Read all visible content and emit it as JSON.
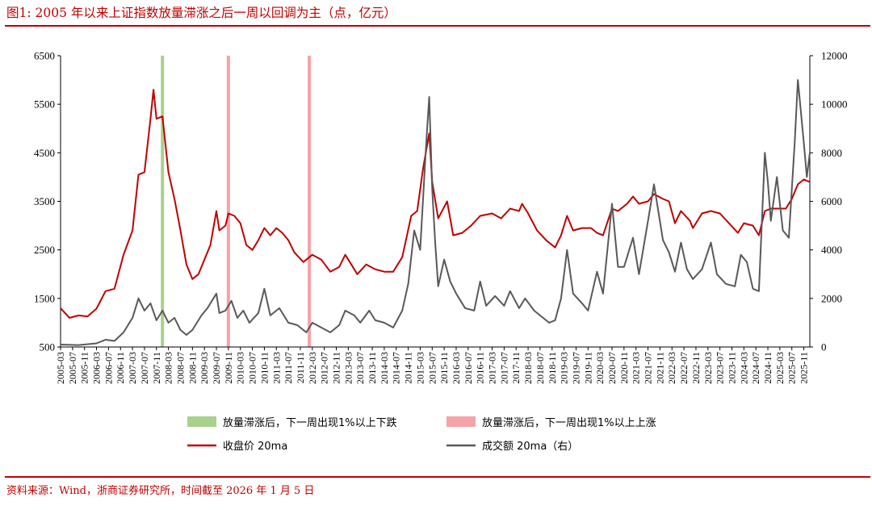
{
  "title": "图1:  2005 年以来上证指数放量滞涨之后一周以回调为主（点，亿元）",
  "source": "资料来源：Wind，浙商证券研究所，时间截至 2026 年 1 月 5 日",
  "colors": {
    "accent": "#c00000",
    "close": "#c00000",
    "volume": "#595959",
    "band_down": "#a9d18e",
    "band_up": "#f4a3a8"
  },
  "chart_data": {
    "type": "line",
    "x_start": "2005-03",
    "x_end": "2026-01",
    "x_ticks": [
      "2005-03",
      "2005-07",
      "2005-11",
      "2006-03",
      "2006-07",
      "2006-11",
      "2007-03",
      "2007-07",
      "2007-11",
      "2008-03",
      "2008-07",
      "2008-11",
      "2009-03",
      "2009-07",
      "2009-11",
      "2010-03",
      "2010-07",
      "2010-11",
      "2011-03",
      "2011-07",
      "2011-11",
      "2012-03",
      "2012-07",
      "2012-11",
      "2013-03",
      "2013-07",
      "2013-11",
      "2014-03",
      "2014-07",
      "2014-11",
      "2015-03",
      "2015-07",
      "2015-11",
      "2016-03",
      "2016-07",
      "2016-11",
      "2017-03",
      "2017-07",
      "2017-11",
      "2018-03",
      "2018-07",
      "2018-11",
      "2019-03",
      "2019-07",
      "2019-11",
      "2020-03",
      "2020-07",
      "2020-11",
      "2021-03",
      "2021-07",
      "2021-11",
      "2022-03",
      "2022-07",
      "2022-11",
      "2023-03",
      "2023-07",
      "2023-11",
      "2024-03",
      "2024-07",
      "2024-11",
      "2025-03",
      "2025-07",
      "2025-11"
    ],
    "y_left": {
      "ticks": [
        500,
        1500,
        2500,
        3500,
        4500,
        5500,
        6500
      ],
      "range": [
        500,
        6500
      ]
    },
    "y_right": {
      "ticks": [
        0,
        2000,
        4000,
        6000,
        8000,
        10000,
        12000
      ],
      "range": [
        0,
        12000
      ]
    },
    "bands": [
      {
        "date": "2008-01",
        "series": "放量滞涨后，下一周出现1%以上下跌"
      },
      {
        "date": "2009-11",
        "series": "放量滞涨后，下一周出现1%以上上涨"
      },
      {
        "date": "2012-02",
        "series": "放量滞涨后，下一周出现1%以上上涨"
      }
    ],
    "legend": {
      "down": "放量滞涨后，下一周出现1%以上下跌",
      "up": "放量滞涨后，下一周出现1%以上上涨",
      "close": "收盘价 20ma",
      "volume": "成交额 20ma（右）"
    },
    "series": [
      {
        "name": "收盘价 20ma",
        "axis": "left",
        "points": [
          [
            "2005-03",
            1300
          ],
          [
            "2005-06",
            1100
          ],
          [
            "2005-09",
            1150
          ],
          [
            "2005-12",
            1130
          ],
          [
            "2006-03",
            1290
          ],
          [
            "2006-06",
            1650
          ],
          [
            "2006-09",
            1700
          ],
          [
            "2006-12",
            2400
          ],
          [
            "2007-03",
            2900
          ],
          [
            "2007-05",
            4050
          ],
          [
            "2007-07",
            4100
          ],
          [
            "2007-09",
            5200
          ],
          [
            "2007-10",
            5800
          ],
          [
            "2007-11",
            5200
          ],
          [
            "2008-01",
            5250
          ],
          [
            "2008-03",
            4100
          ],
          [
            "2008-05",
            3550
          ],
          [
            "2008-07",
            2900
          ],
          [
            "2008-09",
            2200
          ],
          [
            "2008-11",
            1900
          ],
          [
            "2009-01",
            2000
          ],
          [
            "2009-03",
            2300
          ],
          [
            "2009-05",
            2600
          ],
          [
            "2009-07",
            3300
          ],
          [
            "2009-08",
            2900
          ],
          [
            "2009-10",
            3000
          ],
          [
            "2009-11",
            3250
          ],
          [
            "2010-01",
            3200
          ],
          [
            "2010-03",
            3050
          ],
          [
            "2010-05",
            2600
          ],
          [
            "2010-07",
            2500
          ],
          [
            "2010-09",
            2700
          ],
          [
            "2010-11",
            2950
          ],
          [
            "2011-01",
            2800
          ],
          [
            "2011-03",
            2950
          ],
          [
            "2011-05",
            2850
          ],
          [
            "2011-07",
            2700
          ],
          [
            "2011-09",
            2450
          ],
          [
            "2011-12",
            2250
          ],
          [
            "2012-03",
            2400
          ],
          [
            "2012-06",
            2300
          ],
          [
            "2012-09",
            2050
          ],
          [
            "2012-12",
            2150
          ],
          [
            "2013-02",
            2400
          ],
          [
            "2013-04",
            2200
          ],
          [
            "2013-06",
            2000
          ],
          [
            "2013-09",
            2200
          ],
          [
            "2013-12",
            2100
          ],
          [
            "2014-03",
            2050
          ],
          [
            "2014-06",
            2050
          ],
          [
            "2014-09",
            2350
          ],
          [
            "2014-12",
            3200
          ],
          [
            "2015-02",
            3300
          ],
          [
            "2015-04",
            4200
          ],
          [
            "2015-06",
            4900
          ],
          [
            "2015-07",
            3900
          ],
          [
            "2015-09",
            3150
          ],
          [
            "2015-12",
            3500
          ],
          [
            "2016-02",
            2800
          ],
          [
            "2016-05",
            2850
          ],
          [
            "2016-08",
            3000
          ],
          [
            "2016-11",
            3200
          ],
          [
            "2017-03",
            3250
          ],
          [
            "2017-06",
            3150
          ],
          [
            "2017-09",
            3350
          ],
          [
            "2017-12",
            3300
          ],
          [
            "2018-01",
            3450
          ],
          [
            "2018-03",
            3250
          ],
          [
            "2018-06",
            2900
          ],
          [
            "2018-09",
            2700
          ],
          [
            "2018-12",
            2550
          ],
          [
            "2019-02",
            2800
          ],
          [
            "2019-04",
            3200
          ],
          [
            "2019-06",
            2900
          ],
          [
            "2019-09",
            2950
          ],
          [
            "2019-12",
            2950
          ],
          [
            "2020-02",
            2850
          ],
          [
            "2020-04",
            2800
          ],
          [
            "2020-07",
            3350
          ],
          [
            "2020-09",
            3300
          ],
          [
            "2020-12",
            3450
          ],
          [
            "2021-02",
            3600
          ],
          [
            "2021-04",
            3450
          ],
          [
            "2021-07",
            3500
          ],
          [
            "2021-09",
            3650
          ],
          [
            "2021-12",
            3550
          ],
          [
            "2022-02",
            3500
          ],
          [
            "2022-04",
            3050
          ],
          [
            "2022-06",
            3300
          ],
          [
            "2022-09",
            3100
          ],
          [
            "2022-10",
            2950
          ],
          [
            "2023-01",
            3250
          ],
          [
            "2023-04",
            3300
          ],
          [
            "2023-07",
            3250
          ],
          [
            "2023-10",
            3050
          ],
          [
            "2024-01",
            2850
          ],
          [
            "2024-03",
            3050
          ],
          [
            "2024-06",
            3000
          ],
          [
            "2024-08",
            2800
          ],
          [
            "2024-10",
            3300
          ],
          [
            "2024-12",
            3350
          ],
          [
            "2025-03",
            3350
          ],
          [
            "2025-05",
            3350
          ],
          [
            "2025-07",
            3550
          ],
          [
            "2025-09",
            3850
          ],
          [
            "2025-11",
            3950
          ],
          [
            "2026-01",
            3900
          ]
        ]
      },
      {
        "name": "成交额 20ma（右）",
        "axis": "right",
        "points": [
          [
            "2005-03",
            100
          ],
          [
            "2005-09",
            80
          ],
          [
            "2006-03",
            150
          ],
          [
            "2006-06",
            300
          ],
          [
            "2006-09",
            250
          ],
          [
            "2006-12",
            600
          ],
          [
            "2007-03",
            1200
          ],
          [
            "2007-05",
            2000
          ],
          [
            "2007-07",
            1500
          ],
          [
            "2007-09",
            1800
          ],
          [
            "2007-11",
            1100
          ],
          [
            "2008-01",
            1500
          ],
          [
            "2008-03",
            1000
          ],
          [
            "2008-05",
            1200
          ],
          [
            "2008-07",
            700
          ],
          [
            "2008-09",
            500
          ],
          [
            "2008-11",
            700
          ],
          [
            "2009-02",
            1300
          ],
          [
            "2009-04",
            1600
          ],
          [
            "2009-07",
            2200
          ],
          [
            "2009-08",
            1400
          ],
          [
            "2009-10",
            1500
          ],
          [
            "2009-12",
            1900
          ],
          [
            "2010-02",
            1200
          ],
          [
            "2010-04",
            1500
          ],
          [
            "2010-06",
            1000
          ],
          [
            "2010-09",
            1400
          ],
          [
            "2010-11",
            2400
          ],
          [
            "2011-01",
            1300
          ],
          [
            "2011-04",
            1600
          ],
          [
            "2011-07",
            1000
          ],
          [
            "2011-10",
            900
          ],
          [
            "2012-01",
            600
          ],
          [
            "2012-03",
            1000
          ],
          [
            "2012-06",
            800
          ],
          [
            "2012-09",
            600
          ],
          [
            "2012-12",
            900
          ],
          [
            "2013-02",
            1500
          ],
          [
            "2013-05",
            1300
          ],
          [
            "2013-07",
            1000
          ],
          [
            "2013-10",
            1500
          ],
          [
            "2013-12",
            1100
          ],
          [
            "2014-03",
            1000
          ],
          [
            "2014-06",
            800
          ],
          [
            "2014-09",
            1500
          ],
          [
            "2014-11",
            2600
          ],
          [
            "2015-01",
            4800
          ],
          [
            "2015-03",
            4000
          ],
          [
            "2015-05",
            8400
          ],
          [
            "2015-06",
            10300
          ],
          [
            "2015-07",
            6500
          ],
          [
            "2015-08",
            4300
          ],
          [
            "2015-09",
            2500
          ],
          [
            "2015-11",
            3600
          ],
          [
            "2016-01",
            2700
          ],
          [
            "2016-03",
            2200
          ],
          [
            "2016-06",
            1600
          ],
          [
            "2016-09",
            1500
          ],
          [
            "2016-11",
            2700
          ],
          [
            "2017-01",
            1700
          ],
          [
            "2017-04",
            2100
          ],
          [
            "2017-07",
            1700
          ],
          [
            "2017-09",
            2300
          ],
          [
            "2017-12",
            1600
          ],
          [
            "2018-02",
            2000
          ],
          [
            "2018-05",
            1500
          ],
          [
            "2018-07",
            1300
          ],
          [
            "2018-10",
            1000
          ],
          [
            "2018-12",
            1100
          ],
          [
            "2019-02",
            2000
          ],
          [
            "2019-04",
            4000
          ],
          [
            "2019-06",
            2200
          ],
          [
            "2019-09",
            1800
          ],
          [
            "2019-11",
            1500
          ],
          [
            "2020-02",
            3100
          ],
          [
            "2020-04",
            2200
          ],
          [
            "2020-07",
            5900
          ],
          [
            "2020-09",
            3300
          ],
          [
            "2020-11",
            3300
          ],
          [
            "2021-02",
            4500
          ],
          [
            "2021-04",
            3000
          ],
          [
            "2021-07",
            5200
          ],
          [
            "2021-09",
            6700
          ],
          [
            "2021-12",
            4400
          ],
          [
            "2022-02",
            3900
          ],
          [
            "2022-04",
            3100
          ],
          [
            "2022-06",
            4300
          ],
          [
            "2022-08",
            3200
          ],
          [
            "2022-10",
            2800
          ],
          [
            "2023-01",
            3200
          ],
          [
            "2023-04",
            4300
          ],
          [
            "2023-06",
            3000
          ],
          [
            "2023-09",
            2600
          ],
          [
            "2023-12",
            2500
          ],
          [
            "2024-02",
            3800
          ],
          [
            "2024-04",
            3500
          ],
          [
            "2024-06",
            2400
          ],
          [
            "2024-08",
            2300
          ],
          [
            "2024-10",
            8000
          ],
          [
            "2024-11",
            6800
          ],
          [
            "2024-12",
            5200
          ],
          [
            "2025-02",
            7000
          ],
          [
            "2025-04",
            4800
          ],
          [
            "2025-06",
            4500
          ],
          [
            "2025-08",
            8500
          ],
          [
            "2025-09",
            11000
          ],
          [
            "2025-10",
            9700
          ],
          [
            "2025-11",
            8400
          ],
          [
            "2025-12",
            7000
          ],
          [
            "2026-01",
            8000
          ]
        ]
      }
    ]
  }
}
